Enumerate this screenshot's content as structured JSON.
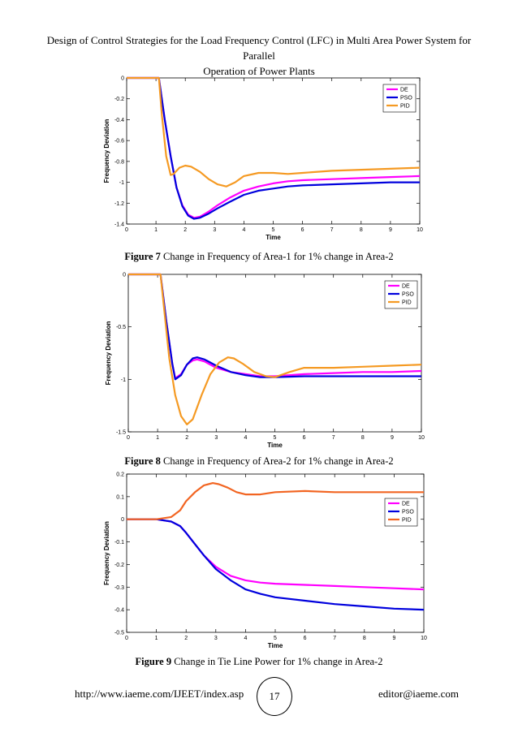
{
  "header": {
    "title_line1": "Design of Control Strategies for the Load Frequency Control (LFC) in Multi Area Power System for Parallel",
    "title_line2": "Operation of Power Plants"
  },
  "figures": [
    {
      "caption_label": "Figure 7",
      "caption_text": " Change in Frequency of Area-1 for 1% change in Area-2"
    },
    {
      "caption_label": "Figure 8",
      "caption_text": " Change in Frequency of Area-2 for 1% change in Area-2"
    },
    {
      "caption_label": "Figure 9",
      "caption_text": " Change in Tie Line Power for 1% change in Area-2"
    }
  ],
  "footer": {
    "url": "http://www.iaeme.com/IJEET/index.asp",
    "page_number": "17",
    "email": "editor@iaeme.com"
  },
  "chart_data": [
    {
      "type": "line",
      "xlabel": "Time",
      "ylabel": "Frequency Deviation",
      "xlim": [
        0,
        10
      ],
      "ylim": [
        -1.4,
        0
      ],
      "xticks": [
        "0",
        "1",
        "2",
        "3",
        "4",
        "5",
        "6",
        "7",
        "8",
        "9",
        "10"
      ],
      "yticks": [
        "0",
        "-0.2",
        "-0.4",
        "-0.6",
        "-0.8",
        "-1",
        "-1.2",
        "-1.4"
      ],
      "ytick_values": [
        0,
        -0.2,
        -0.4,
        -0.6,
        -0.8,
        -1,
        -1.2,
        -1.4
      ],
      "legend_position": "top-right",
      "grid": false,
      "series": [
        {
          "name": "DE",
          "color": "#ff00ff",
          "x": [
            0,
            1.1,
            1.3,
            1.5,
            1.7,
            1.9,
            2.1,
            2.3,
            2.5,
            2.8,
            3.1,
            3.5,
            4,
            4.5,
            5,
            5.5,
            6,
            7,
            8,
            9,
            10
          ],
          "y": [
            0,
            0,
            -0.4,
            -0.75,
            -1.05,
            -1.22,
            -1.31,
            -1.34,
            -1.33,
            -1.28,
            -1.22,
            -1.15,
            -1.08,
            -1.04,
            -1.01,
            -0.99,
            -0.98,
            -0.97,
            -0.96,
            -0.95,
            -0.94
          ]
        },
        {
          "name": "PSO",
          "color": "#0000dd",
          "x": [
            0,
            1.1,
            1.3,
            1.5,
            1.7,
            1.9,
            2.1,
            2.3,
            2.5,
            2.8,
            3.1,
            3.5,
            4,
            4.5,
            5,
            5.5,
            6,
            7,
            8,
            9,
            10
          ],
          "y": [
            0,
            0,
            -0.4,
            -0.75,
            -1.05,
            -1.23,
            -1.32,
            -1.35,
            -1.34,
            -1.3,
            -1.25,
            -1.19,
            -1.12,
            -1.08,
            -1.06,
            -1.04,
            -1.03,
            -1.02,
            -1.01,
            -1.0,
            -1.0
          ]
        },
        {
          "name": "PID",
          "color": "#f59a23",
          "x": [
            0,
            1.1,
            1.2,
            1.35,
            1.5,
            1.6,
            1.8,
            2.0,
            2.2,
            2.5,
            2.8,
            3.1,
            3.4,
            3.7,
            4,
            4.5,
            5,
            5.5,
            6,
            7,
            8,
            9,
            10
          ],
          "y": [
            0,
            0,
            -0.35,
            -0.75,
            -0.93,
            -0.92,
            -0.86,
            -0.84,
            -0.85,
            -0.9,
            -0.97,
            -1.02,
            -1.04,
            -1.0,
            -0.94,
            -0.91,
            -0.91,
            -0.92,
            -0.91,
            -0.89,
            -0.88,
            -0.87,
            -0.86
          ]
        }
      ]
    },
    {
      "type": "line",
      "xlabel": "Time",
      "ylabel": "Frequency Deviation",
      "xlim": [
        0,
        10
      ],
      "ylim": [
        -1.5,
        0
      ],
      "xticks": [
        "0",
        "1",
        "2",
        "3",
        "4",
        "5",
        "6",
        "7",
        "8",
        "9",
        "10"
      ],
      "yticks": [
        "0",
        "-0.5",
        "-1",
        "-1.5"
      ],
      "ytick_values": [
        0,
        -0.5,
        -1,
        -1.5
      ],
      "legend_position": "top-right",
      "grid": false,
      "series": [
        {
          "name": "DE",
          "color": "#ff00ff",
          "x": [
            0,
            1.1,
            1.3,
            1.5,
            1.6,
            1.8,
            2.0,
            2.2,
            2.35,
            2.6,
            3,
            3.5,
            4,
            4.5,
            5,
            6,
            7,
            8,
            9,
            10
          ],
          "y": [
            0,
            0,
            -0.45,
            -0.85,
            -0.99,
            -0.95,
            -0.86,
            -0.82,
            -0.81,
            -0.83,
            -0.89,
            -0.93,
            -0.95,
            -0.97,
            -0.97,
            -0.95,
            -0.94,
            -0.93,
            -0.93,
            -0.92
          ]
        },
        {
          "name": "PSO",
          "color": "#0000dd",
          "x": [
            0,
            1.1,
            1.3,
            1.5,
            1.6,
            1.8,
            2.0,
            2.2,
            2.35,
            2.6,
            3,
            3.5,
            4,
            4.5,
            5,
            6,
            7,
            8,
            9,
            10
          ],
          "y": [
            0,
            0,
            -0.45,
            -0.85,
            -1.0,
            -0.96,
            -0.86,
            -0.8,
            -0.79,
            -0.81,
            -0.87,
            -0.93,
            -0.96,
            -0.98,
            -0.98,
            -0.97,
            -0.97,
            -0.97,
            -0.97,
            -0.97
          ]
        },
        {
          "name": "PID",
          "color": "#f59a23",
          "x": [
            0,
            1.1,
            1.25,
            1.4,
            1.6,
            1.8,
            2.0,
            2.2,
            2.5,
            2.8,
            3.1,
            3.4,
            3.6,
            3.9,
            4.3,
            4.7,
            5,
            5.5,
            6,
            7,
            8,
            9,
            10
          ],
          "y": [
            0,
            0,
            -0.4,
            -0.8,
            -1.15,
            -1.35,
            -1.43,
            -1.38,
            -1.15,
            -0.95,
            -0.84,
            -0.79,
            -0.8,
            -0.85,
            -0.93,
            -0.97,
            -0.98,
            -0.93,
            -0.89,
            -0.89,
            -0.88,
            -0.87,
            -0.86
          ]
        }
      ]
    },
    {
      "type": "line",
      "xlabel": "Time",
      "ylabel": "Frequency Deviation",
      "xlim": [
        0,
        10
      ],
      "ylim": [
        -0.5,
        0.2
      ],
      "xticks": [
        "0",
        "1",
        "2",
        "3",
        "4",
        "5",
        "6",
        "7",
        "8",
        "9",
        "10"
      ],
      "yticks": [
        "0.2",
        "0.1",
        "0",
        "-0.1",
        "-0.2",
        "-0.3",
        "-0.4",
        "-0.5"
      ],
      "ytick_values": [
        0.2,
        0.1,
        0,
        -0.1,
        -0.2,
        -0.3,
        -0.4,
        -0.5
      ],
      "legend_position": "right",
      "grid": false,
      "series": [
        {
          "name": "DE",
          "color": "#ff00ff",
          "x": [
            0,
            1,
            1.5,
            1.8,
            2.0,
            2.3,
            2.6,
            3.0,
            3.5,
            4,
            4.5,
            5,
            6,
            7,
            8,
            9,
            10
          ],
          "y": [
            0,
            0,
            -0.01,
            -0.03,
            -0.06,
            -0.11,
            -0.16,
            -0.21,
            -0.25,
            -0.27,
            -0.28,
            -0.285,
            -0.29,
            -0.295,
            -0.3,
            -0.305,
            -0.31
          ]
        },
        {
          "name": "PSO",
          "color": "#0000dd",
          "x": [
            0,
            1,
            1.5,
            1.8,
            2.0,
            2.3,
            2.6,
            3.0,
            3.5,
            4,
            4.5,
            5,
            6,
            7,
            8,
            9,
            10
          ],
          "y": [
            0,
            0,
            -0.01,
            -0.03,
            -0.06,
            -0.11,
            -0.16,
            -0.22,
            -0.27,
            -0.31,
            -0.33,
            -0.345,
            -0.36,
            -0.375,
            -0.385,
            -0.395,
            -0.4
          ]
        },
        {
          "name": "PID",
          "color": "#f26522",
          "x": [
            0,
            1,
            1.5,
            1.8,
            2.0,
            2.3,
            2.6,
            2.9,
            3.1,
            3.4,
            3.7,
            4,
            4.5,
            5,
            6,
            7,
            8,
            9,
            10
          ],
          "y": [
            0,
            0,
            0.01,
            0.04,
            0.08,
            0.12,
            0.15,
            0.16,
            0.155,
            0.14,
            0.12,
            0.11,
            0.11,
            0.12,
            0.125,
            0.12,
            0.12,
            0.12,
            0.12
          ]
        }
      ]
    }
  ]
}
